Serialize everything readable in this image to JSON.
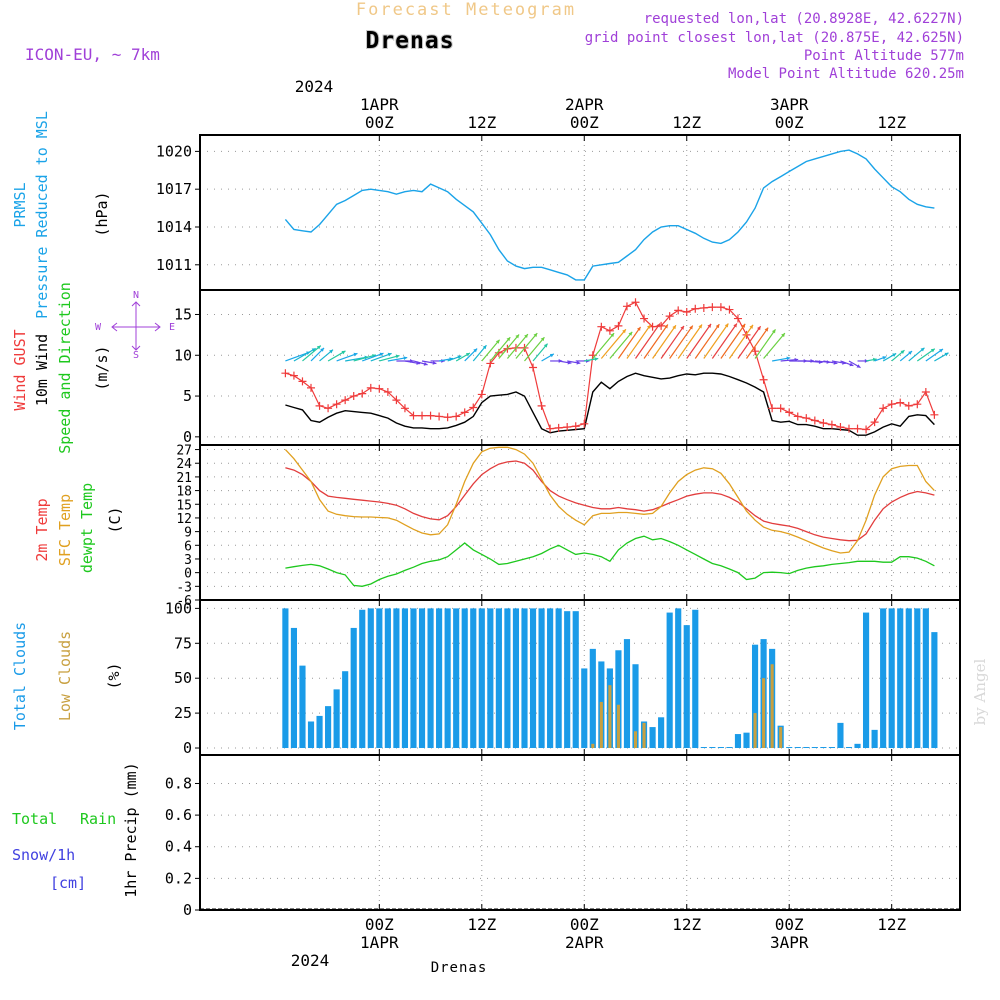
{
  "header": {
    "forecast_title": "Forecast Meteogram",
    "location": "Drenas",
    "model": "ICON-EU, ~ 7km",
    "requested": "requested lon,lat (20.8928E, 42.6227N)",
    "grid_point": "grid point closest lon,lat (20.875E, 42.625N)",
    "point_altitude": "Point Altitude 577m",
    "model_altitude": "Model Point Altitude 620.25m",
    "footer_location": "Drenas",
    "watermark": "by Angel"
  },
  "time_axis": {
    "start_hour": -21,
    "end_hour": 68,
    "year": "2024",
    "ticks": [
      {
        "h": 0,
        "label": "00Z",
        "date": "1APR",
        "year": "2024"
      },
      {
        "h": 12,
        "label": "12Z"
      },
      {
        "h": 24,
        "label": "00Z",
        "date": "2APR"
      },
      {
        "h": 36,
        "label": "12Z"
      },
      {
        "h": 48,
        "label": "00Z",
        "date": "3APR"
      },
      {
        "h": 60,
        "label": "12Z"
      }
    ]
  },
  "colors": {
    "pressure": "#1aa3e8",
    "gust": "#ef3b3b",
    "wind": "#000000",
    "temp": "#e23d3d",
    "sfc": "#e0a020",
    "dewpt": "#1ec81e",
    "total_clouds": "#1a9be8",
    "low_clouds": "#c8a040",
    "purple": "#a040d8",
    "rain_label": "#1ec81e",
    "snow_label": "#4040e0",
    "title_orange": "#f0c888"
  },
  "chart_data": [
    {
      "panel": "pressure",
      "type": "line",
      "ylabel_lines": [
        "PRMSL",
        "Pressure Reduced to MSL"
      ],
      "unit": "(hPa)",
      "yticks": [
        1011,
        1014,
        1017,
        1020
      ],
      "ylim": [
        1009,
        1021.3
      ],
      "x": [
        -11,
        -10,
        -9,
        -8,
        -7,
        -6,
        -5,
        -4,
        -3,
        -2,
        -1,
        0,
        1,
        2,
        3,
        4,
        5,
        6,
        7,
        8,
        9,
        10,
        11,
        12,
        13,
        14,
        15,
        16,
        17,
        18,
        19,
        20,
        21,
        22,
        23,
        24,
        25,
        26,
        27,
        28,
        29,
        30,
        31,
        32,
        33,
        34,
        35,
        36,
        37,
        38,
        39,
        40,
        41,
        42,
        43,
        44,
        45,
        46,
        47,
        48,
        49,
        50,
        51,
        52,
        53,
        54,
        55,
        56,
        57,
        58,
        59,
        60,
        61,
        62,
        63,
        64,
        65
      ],
      "values": [
        1014.6,
        1013.8,
        1013.7,
        1013.6,
        1014.2,
        1015.0,
        1015.8,
        1016.1,
        1016.5,
        1016.9,
        1017.0,
        1016.9,
        1016.8,
        1016.6,
        1016.8,
        1016.9,
        1016.8,
        1017.4,
        1017.1,
        1016.8,
        1016.2,
        1015.7,
        1015.2,
        1014.3,
        1013.4,
        1012.2,
        1011.3,
        1010.9,
        1010.7,
        1010.8,
        1010.8,
        1010.6,
        1010.4,
        1010.2,
        1009.8,
        1009.8,
        1010.9,
        1011.0,
        1011.1,
        1011.2,
        1011.7,
        1012.2,
        1013.0,
        1013.6,
        1014.0,
        1014.1,
        1014.1,
        1013.8,
        1013.5,
        1013.1,
        1012.8,
        1012.7,
        1013.0,
        1013.6,
        1014.4,
        1015.5,
        1017.1,
        1017.6,
        1018.0,
        1018.4,
        1018.8,
        1019.2,
        1019.4,
        1019.6,
        1019.8,
        1020.0,
        1020.1,
        1019.8,
        1019.4,
        1018.6,
        1017.9,
        1017.2,
        1016.8,
        1016.2,
        1015.8,
        1015.6,
        1015.5
      ]
    },
    {
      "panel": "wind",
      "type": "line",
      "ylabel_lines": [
        "Wind GUST",
        "10m Wind",
        "Speed and Direction"
      ],
      "unit": "(m/s)",
      "compass": {
        "n": "N",
        "s": "S",
        "w": "W",
        "e": "E"
      },
      "yticks": [
        0,
        5,
        10,
        15
      ],
      "ylim": [
        -1,
        18
      ],
      "x": [
        -11,
        -10,
        -9,
        -8,
        -7,
        -6,
        -5,
        -4,
        -3,
        -2,
        -1,
        0,
        1,
        2,
        3,
        4,
        5,
        6,
        7,
        8,
        9,
        10,
        11,
        12,
        13,
        14,
        15,
        16,
        17,
        18,
        19,
        20,
        21,
        22,
        23,
        24,
        25,
        26,
        27,
        28,
        29,
        30,
        31,
        32,
        33,
        34,
        35,
        36,
        37,
        38,
        39,
        40,
        41,
        42,
        43,
        44,
        45,
        46,
        47,
        48,
        49,
        50,
        51,
        52,
        53,
        54,
        55,
        56,
        57,
        58,
        59,
        60,
        61,
        62,
        63,
        64,
        65
      ],
      "series": [
        {
          "name": "Wind GUST",
          "values": [
            7.8,
            7.5,
            6.8,
            6.0,
            3.8,
            3.5,
            4.0,
            4.5,
            5.0,
            5.3,
            6.0,
            5.9,
            5.5,
            4.5,
            3.5,
            2.6,
            2.6,
            2.6,
            2.5,
            2.4,
            2.5,
            3.0,
            3.6,
            5.2,
            9.0,
            10.3,
            10.8,
            10.9,
            10.9,
            8.5,
            3.8,
            1.0,
            1.1,
            1.2,
            1.3,
            1.6,
            10.0,
            13.5,
            13.0,
            13.6,
            16.0,
            16.5,
            14.5,
            13.5,
            13.6,
            14.8,
            15.5,
            15.3,
            15.7,
            15.8,
            15.9,
            15.9,
            15.6,
            14.5,
            12.5,
            10.5,
            7.0,
            3.5,
            3.5,
            3.0,
            2.5,
            2.3,
            2.0,
            1.7,
            1.5,
            1.2,
            1.0,
            1.0,
            0.9,
            1.8,
            3.5,
            4.0,
            4.2,
            3.8,
            4.0,
            5.5,
            2.7
          ]
        },
        {
          "name": "10m Wind",
          "values": [
            3.9,
            3.6,
            3.3,
            2.0,
            1.8,
            2.4,
            2.9,
            3.2,
            3.1,
            3.0,
            2.9,
            2.6,
            2.3,
            1.7,
            1.3,
            1.1,
            1.1,
            1.0,
            1.0,
            1.1,
            1.4,
            1.8,
            2.5,
            4.2,
            5.0,
            5.1,
            5.2,
            5.5,
            5.0,
            3.0,
            1.0,
            0.5,
            0.7,
            0.8,
            0.9,
            1.0,
            5.5,
            6.7,
            5.9,
            6.8,
            7.4,
            7.8,
            7.5,
            7.3,
            7.1,
            7.2,
            7.5,
            7.7,
            7.6,
            7.8,
            7.8,
            7.7,
            7.4,
            7.0,
            6.6,
            6.1,
            5.5,
            2.0,
            1.8,
            1.9,
            1.5,
            1.5,
            1.3,
            1.0,
            1.0,
            0.9,
            0.8,
            0.2,
            0.2,
            0.6,
            1.2,
            1.6,
            1.3,
            2.5,
            2.7,
            2.6,
            1.5
          ]
        }
      ],
      "arrow_directions_deg": [
        70,
        60,
        50,
        45,
        50,
        60,
        70,
        80,
        75,
        70,
        70,
        75,
        80,
        90,
        100,
        105,
        100,
        90,
        80,
        70,
        60,
        45,
        40,
        40,
        40,
        40,
        40,
        40,
        40,
        40,
        60,
        90,
        100,
        100,
        90,
        80,
        40,
        40,
        40,
        35,
        35,
        35,
        35,
        35,
        35,
        35,
        35,
        35,
        35,
        35,
        35,
        35,
        35,
        35,
        35,
        35,
        40,
        80,
        85,
        90,
        90,
        95,
        95,
        100,
        100,
        110,
        120,
        90,
        80,
        70,
        60,
        50,
        50,
        50,
        55,
        55,
        60
      ]
    },
    {
      "panel": "temperature",
      "type": "line",
      "ylabel_lines": [
        "2m Temp",
        "SFC Temp",
        "dewpt Temp"
      ],
      "unit": "(C)",
      "yticks": [
        -6,
        -3,
        0,
        3,
        6,
        9,
        12,
        15,
        18,
        21,
        24,
        27
      ],
      "ylim": [
        -6,
        28
      ],
      "x": [
        -11,
        -10,
        -9,
        -8,
        -7,
        -6,
        -5,
        -4,
        -3,
        -2,
        -1,
        0,
        1,
        2,
        3,
        4,
        5,
        6,
        7,
        8,
        9,
        10,
        11,
        12,
        13,
        14,
        15,
        16,
        17,
        18,
        19,
        20,
        21,
        22,
        23,
        24,
        25,
        26,
        27,
        28,
        29,
        30,
        31,
        32,
        33,
        34,
        35,
        36,
        37,
        38,
        39,
        40,
        41,
        42,
        43,
        44,
        45,
        46,
        47,
        48,
        49,
        50,
        51,
        52,
        53,
        54,
        55,
        56,
        57,
        58,
        59,
        60,
        61,
        62,
        63,
        64,
        65
      ],
      "series": [
        {
          "name": "2m Temp",
          "values": [
            23.0,
            22.5,
            21.5,
            20.0,
            18.0,
            16.8,
            16.5,
            16.3,
            16.1,
            15.9,
            15.7,
            15.5,
            15.2,
            14.8,
            14.0,
            13.0,
            12.3,
            11.8,
            11.6,
            12.5,
            14.5,
            17.0,
            19.5,
            21.5,
            22.8,
            23.8,
            24.3,
            24.5,
            24.0,
            22.5,
            20.0,
            18.0,
            16.8,
            16.0,
            15.3,
            14.8,
            14.3,
            14.0,
            14.0,
            14.3,
            14.0,
            13.8,
            13.5,
            13.8,
            14.5,
            15.3,
            16.0,
            16.8,
            17.2,
            17.5,
            17.5,
            17.2,
            16.5,
            15.5,
            14.0,
            12.5,
            11.3,
            10.8,
            10.5,
            10.2,
            9.7,
            9.0,
            8.3,
            7.8,
            7.5,
            7.2,
            7.0,
            7.1,
            8.5,
            11.5,
            14.0,
            15.5,
            16.5,
            17.3,
            17.8,
            17.5,
            17.0
          ]
        },
        {
          "name": "SFC Temp",
          "values": [
            27.0,
            25.0,
            22.5,
            20.0,
            16.0,
            13.5,
            12.8,
            12.5,
            12.3,
            12.2,
            12.2,
            12.1,
            12.0,
            11.5,
            10.5,
            9.5,
            8.7,
            8.3,
            8.5,
            10.5,
            15.0,
            20.0,
            24.0,
            26.5,
            27.3,
            27.5,
            27.5,
            27.0,
            26.0,
            24.0,
            20.5,
            17.0,
            14.5,
            12.8,
            11.5,
            10.5,
            12.5,
            13.0,
            13.0,
            13.2,
            13.2,
            13.0,
            12.8,
            13.0,
            14.5,
            17.5,
            20.0,
            21.5,
            22.5,
            23.0,
            22.8,
            21.8,
            19.5,
            16.5,
            13.5,
            11.5,
            10.0,
            9.3,
            9.0,
            8.5,
            7.8,
            7.0,
            6.2,
            5.4,
            4.8,
            4.3,
            4.5,
            7.0,
            11.5,
            17.0,
            21.0,
            22.8,
            23.3,
            23.5,
            23.5,
            20.0,
            18.0
          ]
        },
        {
          "name": "dewpt Temp",
          "values": [
            1.0,
            1.3,
            1.6,
            1.8,
            1.5,
            0.8,
            0.0,
            -0.5,
            -2.8,
            -3.0,
            -2.5,
            -1.5,
            -0.8,
            -0.3,
            0.5,
            1.2,
            2.0,
            2.5,
            2.8,
            3.5,
            5.0,
            6.5,
            5.0,
            4.0,
            3.0,
            1.8,
            2.0,
            2.5,
            3.0,
            3.5,
            4.2,
            5.2,
            6.0,
            5.0,
            4.0,
            4.3,
            4.0,
            3.5,
            2.5,
            5.0,
            6.5,
            7.5,
            8.0,
            7.2,
            7.5,
            6.8,
            6.0,
            5.0,
            4.0,
            3.0,
            2.0,
            1.5,
            0.8,
            0.0,
            -1.5,
            -1.2,
            0.0,
            0.1,
            0.0,
            -0.2,
            0.5,
            1.0,
            1.3,
            1.5,
            1.8,
            2.0,
            2.2,
            2.5,
            2.5,
            2.5,
            2.3,
            2.3,
            3.5,
            3.5,
            3.2,
            2.5,
            1.5
          ]
        }
      ]
    },
    {
      "panel": "clouds",
      "type": "bar",
      "ylabel_lines": [
        "Total Clouds",
        "Low Clouds"
      ],
      "unit": "(%)",
      "yticks": [
        0,
        25,
        50,
        75,
        100
      ],
      "ylim": [
        -5,
        106
      ],
      "x": [
        -11,
        -10,
        -9,
        -8,
        -7,
        -6,
        -5,
        -4,
        -3,
        -2,
        -1,
        0,
        1,
        2,
        3,
        4,
        5,
        6,
        7,
        8,
        9,
        10,
        11,
        12,
        13,
        14,
        15,
        16,
        17,
        18,
        19,
        20,
        21,
        22,
        23,
        24,
        25,
        26,
        27,
        28,
        29,
        30,
        31,
        32,
        33,
        34,
        35,
        36,
        37,
        38,
        39,
        40,
        41,
        42,
        43,
        44,
        45,
        46,
        47,
        48,
        49,
        50,
        51,
        52,
        53,
        54,
        55,
        56,
        57,
        58,
        59,
        60,
        61,
        62,
        63,
        64,
        65
      ],
      "series": [
        {
          "name": "Total Clouds",
          "values": [
            100,
            86,
            59,
            19,
            23,
            30,
            42,
            55,
            86,
            99,
            100,
            100,
            100,
            100,
            100,
            100,
            100,
            100,
            100,
            100,
            100,
            100,
            100,
            100,
            100,
            100,
            100,
            100,
            100,
            100,
            100,
            100,
            100,
            98,
            98,
            57,
            71,
            62,
            57,
            70,
            78,
            60,
            19,
            15,
            22,
            97,
            100,
            88,
            99,
            0,
            0,
            0,
            0,
            10,
            11,
            74,
            78,
            71,
            16,
            0,
            0,
            0,
            0,
            0,
            0,
            18,
            0,
            3,
            97,
            13,
            100,
            100,
            100,
            100,
            100,
            100,
            83
          ]
        },
        {
          "name": "Low Clouds",
          "values": [
            0,
            0,
            0,
            0,
            0,
            0,
            0,
            0,
            0,
            0,
            0,
            0,
            0,
            0,
            0,
            0,
            0,
            0,
            0,
            0,
            0,
            0,
            0,
            0,
            0,
            0,
            0,
            0,
            0,
            0,
            0,
            0,
            0,
            0,
            0,
            0,
            3,
            33,
            45,
            31,
            0,
            12,
            18,
            0,
            0,
            0,
            0,
            0,
            0,
            0,
            0,
            0,
            0,
            0,
            0,
            25,
            50,
            60,
            15,
            0,
            0,
            0,
            0,
            0,
            0,
            0,
            0,
            0,
            0,
            0,
            0,
            0,
            0,
            0,
            0,
            0,
            0
          ]
        }
      ]
    },
    {
      "panel": "precip",
      "type": "bar",
      "ylabel_lines": [
        "Total",
        "Rain",
        "Snow/1h",
        "[cm]"
      ],
      "unit": "1hr Precip (mm)",
      "yticks": [
        0,
        0.2,
        0.4,
        0.6,
        0.8
      ],
      "ylim": [
        0,
        0.98
      ],
      "values": []
    }
  ]
}
